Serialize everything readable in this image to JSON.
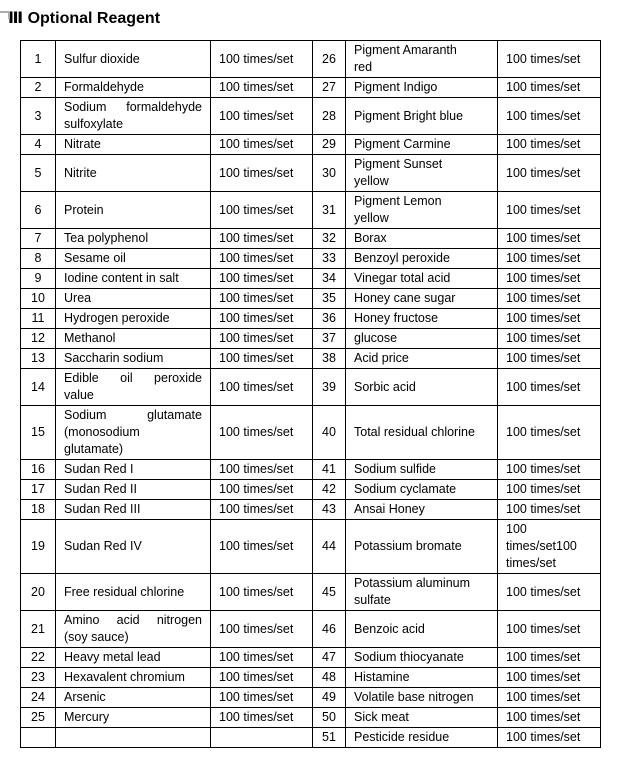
{
  "page": {
    "title": "Ⅲ Optional Reagent"
  },
  "table": {
    "rows": [
      {
        "left": {
          "num": "1",
          "name": "Sulfur dioxide",
          "value": "100 times/set"
        },
        "right": {
          "num": "26",
          "name": "Pigment Amaranth\nred",
          "value": "100 times/set"
        }
      },
      {
        "left": {
          "num": "2",
          "name": "Formaldehyde",
          "value": "100 times/set"
        },
        "right": {
          "num": "27",
          "name": "Pigment Indigo",
          "value": "100 times/set"
        }
      },
      {
        "left": {
          "num": "3",
          "name": "Sodium formaldehyde\nsulfoxylate",
          "value": "100 times/set"
        },
        "right": {
          "num": "28",
          "name": "Pigment Bright blue",
          "value": "100 times/set"
        }
      },
      {
        "left": {
          "num": "4",
          "name": "Nitrate",
          "value": "100 times/set"
        },
        "right": {
          "num": "29",
          "name": "Pigment Carmine",
          "value": "100 times/set"
        }
      },
      {
        "left": {
          "num": "5",
          "name": "Nitrite",
          "value": "100 times/set"
        },
        "right": {
          "num": "30",
          "name": "Pigment Sunset\nyellow",
          "value": "100 times/set"
        }
      },
      {
        "left": {
          "num": "6",
          "name": "Protein",
          "value": "100 times/set"
        },
        "right": {
          "num": "31",
          "name": "Pigment Lemon\nyellow",
          "value": "100 times/set"
        }
      },
      {
        "left": {
          "num": "7",
          "name": "Tea polyphenol",
          "value": "100 times/set"
        },
        "right": {
          "num": "32",
          "name": "Borax",
          "value": "100 times/set"
        }
      },
      {
        "left": {
          "num": "8",
          "name": "Sesame oil",
          "value": "100 times/set"
        },
        "right": {
          "num": "33",
          "name": "Benzoyl peroxide",
          "value": "100 times/set"
        }
      },
      {
        "left": {
          "num": "9",
          "name": "Iodine content in salt",
          "value": "100 times/set"
        },
        "right": {
          "num": "34",
          "name": "Vinegar total acid",
          "value": "100 times/set"
        }
      },
      {
        "left": {
          "num": "10",
          "name": "Urea",
          "value": "100 times/set"
        },
        "right": {
          "num": "35",
          "name": "Honey cane sugar",
          "value": "100 times/set"
        }
      },
      {
        "left": {
          "num": "11",
          "name": "Hydrogen peroxide",
          "value": "100 times/set"
        },
        "right": {
          "num": "36",
          "name": "Honey fructose",
          "value": "100 times/set"
        }
      },
      {
        "left": {
          "num": "12",
          "name": "Methanol",
          "value": "100 times/set"
        },
        "right": {
          "num": "37",
          "name": "glucose",
          "value": "100 times/set"
        }
      },
      {
        "left": {
          "num": "13",
          "name": "Saccharin sodium",
          "value": "100 times/set"
        },
        "right": {
          "num": "38",
          "name": "Acid price",
          "value": "100 times/set"
        }
      },
      {
        "left": {
          "num": "14",
          "name": "Edible oil peroxide\nvalue",
          "value": "100 times/set"
        },
        "right": {
          "num": "39",
          "name": "Sorbic acid",
          "value": "100 times/set"
        }
      },
      {
        "left": {
          "num": "15",
          "name": "Sodium glutamate\n(monosodium\nglutamate)",
          "value": "100 times/set"
        },
        "right": {
          "num": "40",
          "name": "Total residual chlorine",
          "value": "100 times/set"
        }
      },
      {
        "left": {
          "num": "16",
          "name": "Sudan Red I",
          "value": "100 times/set"
        },
        "right": {
          "num": "41",
          "name": "Sodium sulfide",
          "value": "100 times/set"
        }
      },
      {
        "left": {
          "num": "17",
          "name": "Sudan Red II",
          "value": "100 times/set"
        },
        "right": {
          "num": "42",
          "name": "Sodium cyclamate",
          "value": "100 times/set"
        }
      },
      {
        "left": {
          "num": "18",
          "name": "Sudan Red III",
          "value": "100 times/set"
        },
        "right": {
          "num": "43",
          "name": "Ansai Honey",
          "value": "100 times/set"
        }
      },
      {
        "left": {
          "num": "19",
          "name": "Sudan Red IV",
          "value": "100 times/set"
        },
        "right": {
          "num": "44",
          "name": "Potassium bromate",
          "value": "100\ntimes/set100\ntimes/set"
        }
      },
      {
        "left": {
          "num": "20",
          "name": "Free residual chlorine",
          "value": "100 times/set"
        },
        "right": {
          "num": "45",
          "name": "Potassium aluminum\nsulfate",
          "value": "100 times/set"
        }
      },
      {
        "left": {
          "num": "21",
          "name": "Amino acid nitrogen\n(soy sauce)",
          "value": "100 times/set"
        },
        "right": {
          "num": "46",
          "name": "Benzoic acid",
          "value": "100 times/set"
        }
      },
      {
        "left": {
          "num": "22",
          "name": "Heavy metal lead",
          "value": "100 times/set"
        },
        "right": {
          "num": "47",
          "name": "Sodium thiocyanate",
          "value": "100 times/set"
        }
      },
      {
        "left": {
          "num": "23",
          "name": "Hexavalent chromium",
          "value": "100 times/set"
        },
        "right": {
          "num": "48",
          "name": "Histamine",
          "value": "100 times/set"
        }
      },
      {
        "left": {
          "num": "24",
          "name": "Arsenic",
          "value": "100 times/set"
        },
        "right": {
          "num": "49",
          "name": "Volatile base nitrogen",
          "value": "100 times/set"
        }
      },
      {
        "left": {
          "num": "25",
          "name": "Mercury",
          "value": "100 times/set"
        },
        "right": {
          "num": "50",
          "name": "Sick meat",
          "value": "100 times/set"
        }
      },
      {
        "left": {
          "num": "",
          "name": "",
          "value": ""
        },
        "right": {
          "num": "51",
          "name": "Pesticide residue",
          "value": "100 times/set"
        }
      }
    ]
  }
}
